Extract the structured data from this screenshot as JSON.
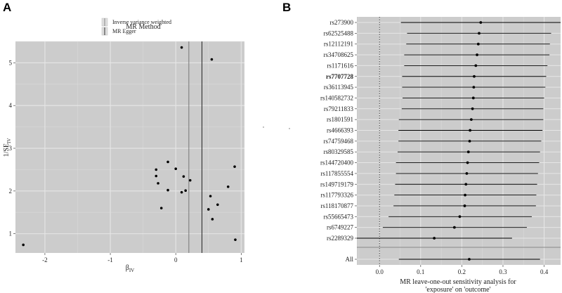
{
  "chart_data": [
    {
      "panel": "A",
      "type": "scatter",
      "legend_title": "MR Method",
      "legend": [
        "Inverse variance weighted",
        "MR Egger"
      ],
      "vlines": [
        {
          "name": "Inverse variance weighted",
          "x": 0.2
        },
        {
          "name": "MR Egger",
          "x": 0.4
        }
      ],
      "xlabel": "β",
      "xlabel_sub": "IV",
      "ylabel": "1/SE",
      "ylabel_sub": "IV",
      "xlim": [
        -2.45,
        1.05
      ],
      "ylim": [
        0.55,
        5.5
      ],
      "xticks": [
        -2,
        -1,
        0,
        1
      ],
      "yticks": [
        1,
        2,
        3,
        4,
        5
      ],
      "points": [
        {
          "x": -2.33,
          "y": 0.74
        },
        {
          "x": -0.3,
          "y": 2.5
        },
        {
          "x": -0.3,
          "y": 2.35
        },
        {
          "x": -0.27,
          "y": 2.18
        },
        {
          "x": -0.22,
          "y": 1.6
        },
        {
          "x": -0.12,
          "y": 2.68
        },
        {
          "x": -0.12,
          "y": 2.02
        },
        {
          "x": 0.0,
          "y": 2.52
        },
        {
          "x": 0.09,
          "y": 5.36
        },
        {
          "x": 0.09,
          "y": 1.97
        },
        {
          "x": 0.12,
          "y": 2.34
        },
        {
          "x": 0.15,
          "y": 2.01
        },
        {
          "x": 0.22,
          "y": 2.25
        },
        {
          "x": 0.5,
          "y": 1.57
        },
        {
          "x": 0.53,
          "y": 1.88
        },
        {
          "x": 0.55,
          "y": 5.08
        },
        {
          "x": 0.56,
          "y": 1.34
        },
        {
          "x": 0.64,
          "y": 1.68
        },
        {
          "x": 0.8,
          "y": 2.1
        },
        {
          "x": 0.9,
          "y": 2.57
        },
        {
          "x": 0.91,
          "y": 0.86
        }
      ]
    },
    {
      "panel": "B",
      "type": "forest",
      "title": "MR leave-one-out sensitivity analysis for",
      "subtitle": "'exposure' on 'outcome'",
      "xlim": [
        -0.055,
        0.44
      ],
      "xticks": [
        0.0,
        0.1,
        0.2,
        0.3,
        0.4
      ],
      "xtick_labels": [
        "0.0",
        "0.1",
        "0.2",
        "0.3",
        "0.4"
      ],
      "refline": 0,
      "rows": [
        {
          "label": "rs273900",
          "est": 0.246,
          "lo": 0.052,
          "hi": 0.44,
          "bold": false
        },
        {
          "label": "rs62525488",
          "est": 0.242,
          "lo": 0.067,
          "hi": 0.417,
          "bold": false
        },
        {
          "label": "rs12112191",
          "est": 0.24,
          "lo": 0.065,
          "hi": 0.414,
          "bold": false
        },
        {
          "label": "rs34708625",
          "est": 0.237,
          "lo": 0.06,
          "hi": 0.413,
          "bold": false
        },
        {
          "label": "rs1171616",
          "est": 0.234,
          "lo": 0.06,
          "hi": 0.408,
          "bold": false
        },
        {
          "label": "rs7707728",
          "est": 0.23,
          "lo": 0.055,
          "hi": 0.405,
          "bold": true
        },
        {
          "label": "rs36113945",
          "est": 0.229,
          "lo": 0.055,
          "hi": 0.403,
          "bold": false
        },
        {
          "label": "rs140582732",
          "est": 0.228,
          "lo": 0.056,
          "hi": 0.4,
          "bold": false
        },
        {
          "label": "rs79211833",
          "est": 0.226,
          "lo": 0.054,
          "hi": 0.398,
          "bold": false
        },
        {
          "label": "rs1801591",
          "est": 0.223,
          "lo": 0.047,
          "hi": 0.398,
          "bold": false
        },
        {
          "label": "rs4666393",
          "est": 0.22,
          "lo": 0.046,
          "hi": 0.396,
          "bold": false
        },
        {
          "label": "rs74759468",
          "est": 0.219,
          "lo": 0.046,
          "hi": 0.393,
          "bold": false
        },
        {
          "label": "rs80329585",
          "est": 0.216,
          "lo": 0.044,
          "hi": 0.39,
          "bold": false
        },
        {
          "label": "rs144720400",
          "est": 0.214,
          "lo": 0.04,
          "hi": 0.388,
          "bold": false
        },
        {
          "label": "rs117855554",
          "est": 0.212,
          "lo": 0.04,
          "hi": 0.385,
          "bold": false
        },
        {
          "label": "rs149719179",
          "est": 0.21,
          "lo": 0.038,
          "hi": 0.383,
          "bold": false
        },
        {
          "label": "rs117793326",
          "est": 0.208,
          "lo": 0.036,
          "hi": 0.381,
          "bold": false
        },
        {
          "label": "rs118170877",
          "est": 0.207,
          "lo": 0.034,
          "hi": 0.38,
          "bold": false
        },
        {
          "label": "rs55665473",
          "est": 0.195,
          "lo": 0.022,
          "hi": 0.37,
          "bold": false
        },
        {
          "label": "rs6749227",
          "est": 0.182,
          "lo": 0.008,
          "hi": 0.358,
          "bold": false
        },
        {
          "label": "rs2289329",
          "est": 0.133,
          "lo": -0.055,
          "hi": 0.322,
          "bold": false
        }
      ],
      "overall": {
        "label": "All",
        "est": 0.218,
        "lo": 0.047,
        "hi": 0.39
      }
    }
  ],
  "panels": {
    "a_label": "A",
    "b_label": "B"
  }
}
